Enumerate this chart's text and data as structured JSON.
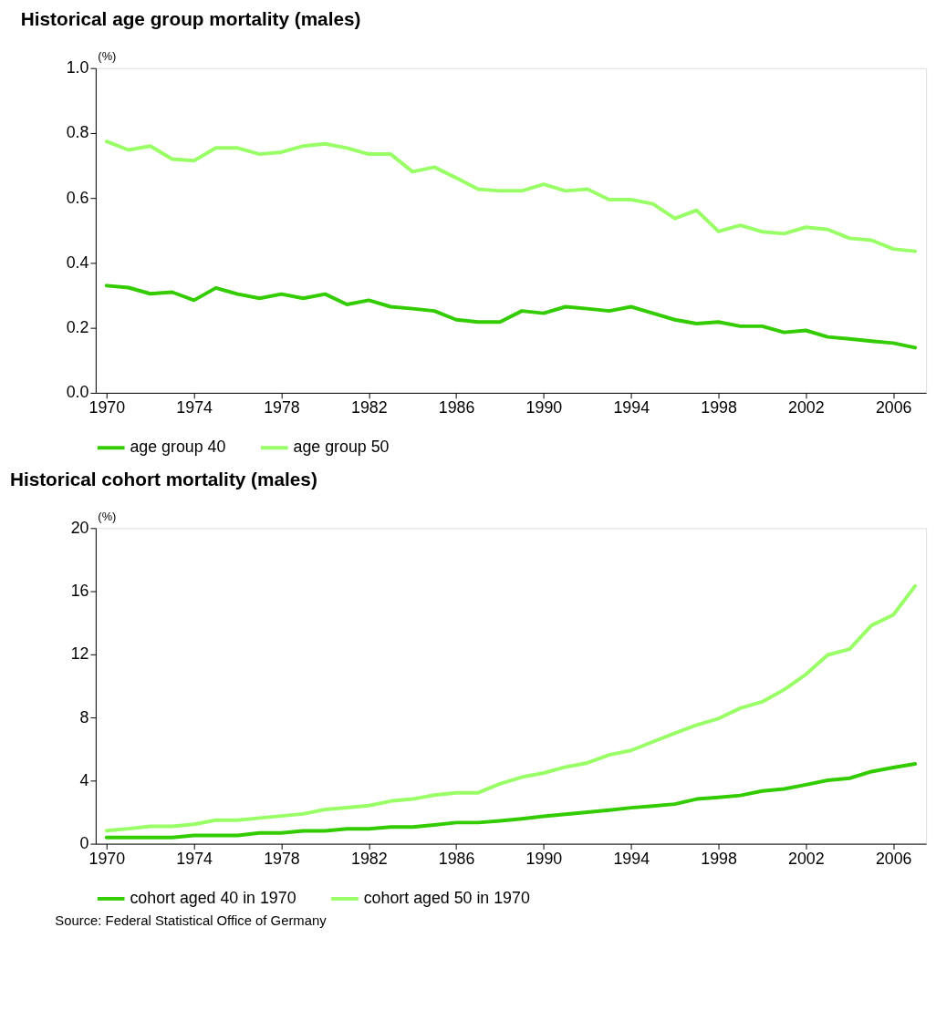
{
  "chart_data": [
    {
      "type": "line",
      "title": "Historical age group mortality (males)",
      "ylabel": "(%)",
      "x": [
        1970,
        1971,
        1972,
        1973,
        1974,
        1975,
        1976,
        1977,
        1978,
        1979,
        1980,
        1981,
        1982,
        1983,
        1984,
        1985,
        1986,
        1987,
        1988,
        1989,
        1990,
        1991,
        1992,
        1993,
        1994,
        1995,
        1996,
        1997,
        1998,
        1999,
        2000,
        2001,
        2002,
        2003,
        2004,
        2005,
        2006,
        2007
      ],
      "series": [
        {
          "name": "age group 40",
          "color": "#33cc00",
          "values": [
            0.33,
            0.324,
            0.305,
            0.31,
            0.285,
            0.323,
            0.304,
            0.291,
            0.304,
            0.291,
            0.304,
            0.272,
            0.285,
            0.265,
            0.259,
            0.252,
            0.225,
            0.218,
            0.218,
            0.252,
            0.245,
            0.265,
            0.259,
            0.252,
            0.265,
            0.245,
            0.225,
            0.213,
            0.218,
            0.205,
            0.205,
            0.186,
            0.192,
            0.172,
            0.166,
            0.159,
            0.153,
            0.139
          ]
        },
        {
          "name": "age group 50",
          "color": "#99ff66",
          "values": [
            0.774,
            0.748,
            0.76,
            0.72,
            0.715,
            0.754,
            0.754,
            0.735,
            0.741,
            0.76,
            0.767,
            0.754,
            0.735,
            0.735,
            0.681,
            0.695,
            0.662,
            0.627,
            0.622,
            0.622,
            0.642,
            0.622,
            0.627,
            0.595,
            0.595,
            0.582,
            0.537,
            0.562,
            0.497,
            0.516,
            0.496,
            0.49,
            0.51,
            0.503,
            0.476,
            0.47,
            0.443,
            0.436
          ]
        }
      ],
      "xlim": [
        1969.5,
        2007.5
      ],
      "xticks": [
        1970,
        1974,
        1978,
        1982,
        1986,
        1990,
        1994,
        1998,
        2002,
        2006
      ],
      "ylim": [
        0,
        1.0
      ],
      "yticks": [
        {
          "value": 0,
          "label": "0.0"
        },
        {
          "value": 0.2,
          "label": "0.2"
        },
        {
          "value": 0.4,
          "label": "0.4"
        },
        {
          "value": 0.6,
          "label": "0.6"
        },
        {
          "value": 0.8,
          "label": "0.8"
        },
        {
          "value": 1.0,
          "label": "1.0"
        }
      ],
      "grid": false,
      "legend": "bottom",
      "marker": "none",
      "line_style": "solid"
    },
    {
      "type": "line",
      "title": "Historical cohort mortality (males)",
      "ylabel": "(%)",
      "x": [
        1970,
        1971,
        1972,
        1973,
        1974,
        1975,
        1976,
        1977,
        1978,
        1979,
        1980,
        1981,
        1982,
        1983,
        1984,
        1985,
        1986,
        1987,
        1988,
        1989,
        1990,
        1991,
        1992,
        1993,
        1994,
        1995,
        1996,
        1997,
        1998,
        1999,
        2000,
        2001,
        2002,
        2003,
        2004,
        2005,
        2006,
        2007
      ],
      "series": [
        {
          "name": "cohort aged 40 in 1970",
          "color": "#33cc00",
          "values": [
            0.4,
            0.4,
            0.4,
            0.4,
            0.53,
            0.53,
            0.53,
            0.68,
            0.68,
            0.81,
            0.81,
            0.94,
            0.94,
            1.06,
            1.06,
            1.19,
            1.34,
            1.34,
            1.45,
            1.58,
            1.74,
            1.87,
            2.0,
            2.13,
            2.28,
            2.39,
            2.51,
            2.83,
            2.94,
            3.06,
            3.34,
            3.47,
            3.74,
            4.02,
            4.15,
            4.57,
            4.83,
            5.06
          ]
        },
        {
          "name": "cohort aged 50 in 1970",
          "color": "#99ff66",
          "values": [
            0.83,
            0.95,
            1.1,
            1.1,
            1.23,
            1.49,
            1.49,
            1.63,
            1.76,
            1.89,
            2.17,
            2.29,
            2.42,
            2.7,
            2.83,
            3.08,
            3.23,
            3.23,
            3.8,
            4.22,
            4.48,
            4.86,
            5.12,
            5.63,
            5.91,
            6.46,
            7.0,
            7.52,
            7.93,
            8.59,
            8.99,
            9.76,
            10.73,
            11.96,
            12.33,
            13.83,
            14.5,
            16.33
          ]
        }
      ],
      "xlim": [
        1969.5,
        2007.5
      ],
      "xticks": [
        1970,
        1974,
        1978,
        1982,
        1986,
        1990,
        1994,
        1998,
        2002,
        2006
      ],
      "ylim": [
        0,
        20
      ],
      "yticks": [
        0,
        4,
        8,
        12,
        16,
        20
      ],
      "grid": false,
      "legend": "bottom",
      "marker": "none",
      "line_style": "solid",
      "annotations": [
        "Source: Federal Statistical Office of Germany"
      ]
    }
  ]
}
